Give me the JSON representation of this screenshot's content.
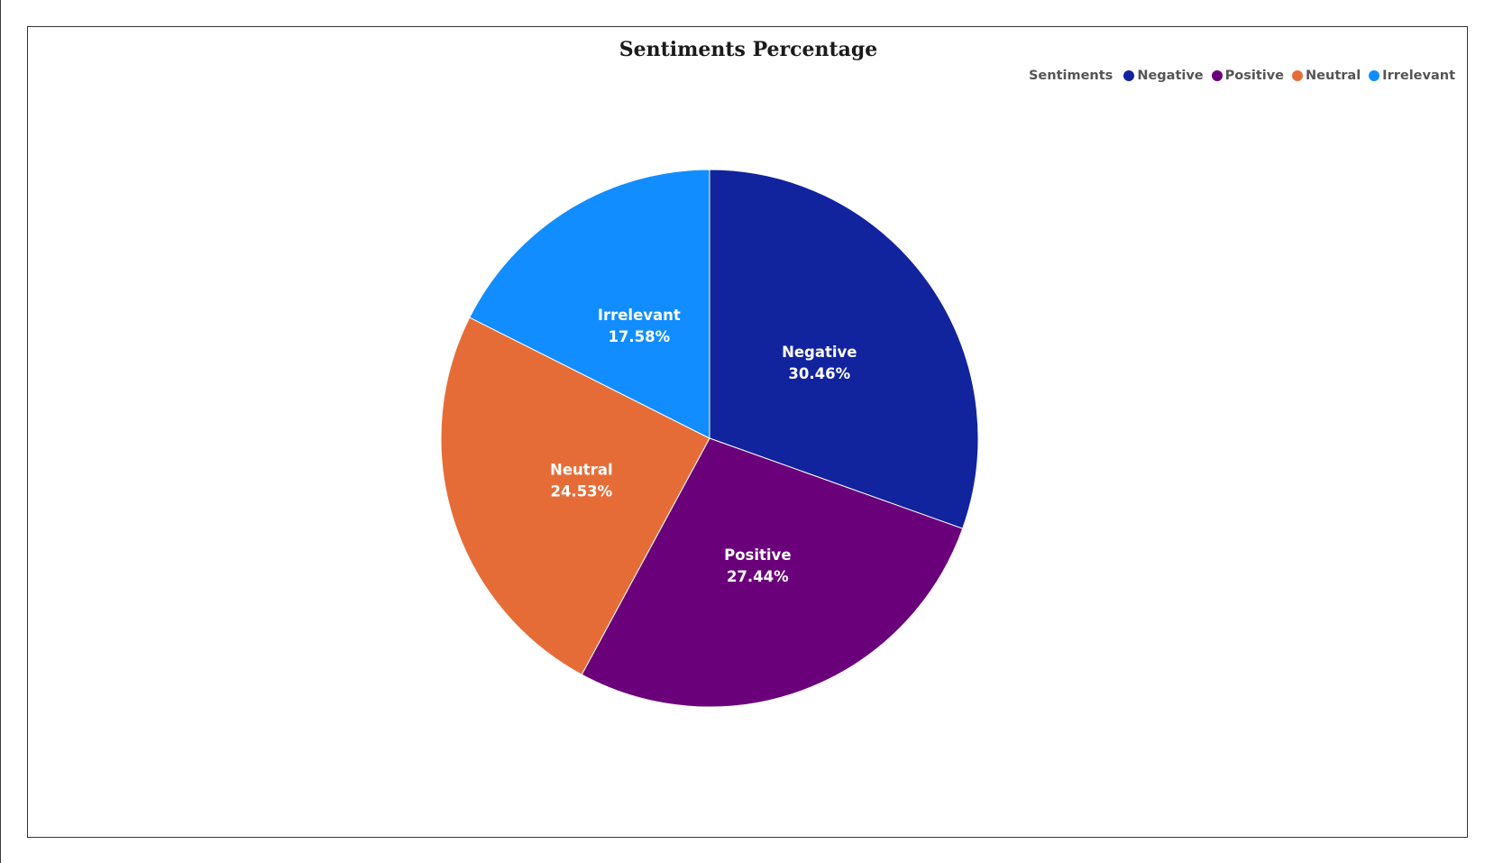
{
  "chart_data": {
    "type": "pie",
    "title": "Sentiments Percentage",
    "legend_title": "Sentiments",
    "legend_position": "top-right",
    "categories": [
      "Negative",
      "Positive",
      "Neutral",
      "Irrelevant"
    ],
    "values": [
      30.46,
      27.44,
      24.53,
      17.58
    ],
    "value_labels": [
      "30.46%",
      "27.44%",
      "24.53%",
      "17.58%"
    ],
    "colors": [
      "#12239E",
      "#6B007B",
      "#E66C37",
      "#118DFF"
    ]
  }
}
